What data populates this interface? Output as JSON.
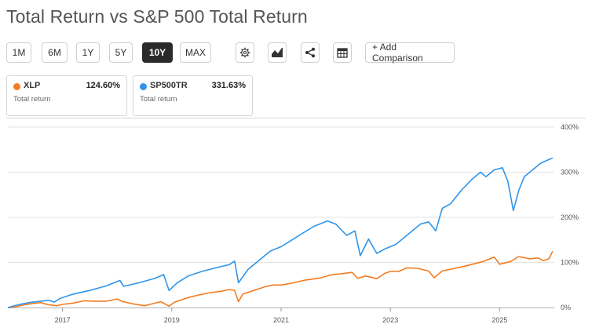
{
  "header": {
    "title": "Total Return vs S&P 500 Total Return"
  },
  "toolbar": {
    "ranges": [
      "1M",
      "6M",
      "1Y",
      "5Y",
      "10Y",
      "MAX"
    ],
    "active_range": "10Y",
    "icons": [
      "gear-icon",
      "chart-type-icon",
      "share-icon",
      "table-icon"
    ],
    "add_label": "+ Add Comparison"
  },
  "legend": [
    {
      "ticker": "XLP",
      "value": "124.60%",
      "sub": "Total return",
      "color": "#f47c20"
    },
    {
      "ticker": "SP500TR",
      "value": "331.63%",
      "sub": "Total return",
      "color": "#2f95ea"
    }
  ],
  "chart_data": {
    "type": "line",
    "x_ticks": [
      "2017",
      "2019",
      "2021",
      "2023",
      "2025"
    ],
    "y_ticks": [
      "400%",
      "300%",
      "200%",
      "100%",
      "0%"
    ],
    "ylim": [
      0,
      400
    ],
    "xlim": [
      2016.0,
      2026.0
    ],
    "grid": true,
    "series": [
      {
        "name": "XLP",
        "color": "#f47c20",
        "points": [
          [
            2016.0,
            0
          ],
          [
            2016.15,
            2
          ],
          [
            2016.3,
            6
          ],
          [
            2016.45,
            9
          ],
          [
            2016.6,
            11
          ],
          [
            2016.75,
            6
          ],
          [
            2016.9,
            4
          ],
          [
            2017.0,
            7
          ],
          [
            2017.2,
            10
          ],
          [
            2017.4,
            15
          ],
          [
            2017.6,
            14
          ],
          [
            2017.8,
            14
          ],
          [
            2018.0,
            19
          ],
          [
            2018.1,
            13
          ],
          [
            2018.3,
            8
          ],
          [
            2018.5,
            4
          ],
          [
            2018.6,
            7
          ],
          [
            2018.8,
            13
          ],
          [
            2018.95,
            3
          ],
          [
            2019.05,
            12
          ],
          [
            2019.3,
            22
          ],
          [
            2019.5,
            28
          ],
          [
            2019.7,
            33
          ],
          [
            2019.9,
            36
          ],
          [
            2020.05,
            40
          ],
          [
            2020.15,
            38
          ],
          [
            2020.22,
            13
          ],
          [
            2020.3,
            30
          ],
          [
            2020.5,
            38
          ],
          [
            2020.7,
            46
          ],
          [
            2020.85,
            50
          ],
          [
            2021.0,
            50
          ],
          [
            2021.2,
            54
          ],
          [
            2021.45,
            61
          ],
          [
            2021.7,
            65
          ],
          [
            2021.9,
            72
          ],
          [
            2022.1,
            75
          ],
          [
            2022.3,
            78
          ],
          [
            2022.4,
            65
          ],
          [
            2022.55,
            70
          ],
          [
            2022.75,
            64
          ],
          [
            2022.9,
            76
          ],
          [
            2023.0,
            80
          ],
          [
            2023.15,
            80
          ],
          [
            2023.3,
            88
          ],
          [
            2023.5,
            87
          ],
          [
            2023.7,
            81
          ],
          [
            2023.8,
            66
          ],
          [
            2023.95,
            81
          ],
          [
            2024.1,
            85
          ],
          [
            2024.3,
            90
          ],
          [
            2024.5,
            96
          ],
          [
            2024.7,
            102
          ],
          [
            2024.9,
            112
          ],
          [
            2025.0,
            96
          ],
          [
            2025.2,
            102
          ],
          [
            2025.35,
            113
          ],
          [
            2025.55,
            108
          ],
          [
            2025.7,
            110
          ],
          [
            2025.8,
            104
          ],
          [
            2025.9,
            108
          ],
          [
            2025.97,
            124.6
          ]
        ]
      },
      {
        "name": "SP500TR",
        "color": "#2f95ea",
        "points": [
          [
            2016.0,
            0
          ],
          [
            2016.15,
            5
          ],
          [
            2016.3,
            9
          ],
          [
            2016.45,
            12
          ],
          [
            2016.6,
            14
          ],
          [
            2016.75,
            16
          ],
          [
            2016.85,
            12
          ],
          [
            2016.95,
            20
          ],
          [
            2017.2,
            30
          ],
          [
            2017.5,
            38
          ],
          [
            2017.8,
            48
          ],
          [
            2018.05,
            60
          ],
          [
            2018.12,
            47
          ],
          [
            2018.4,
            55
          ],
          [
            2018.7,
            65
          ],
          [
            2018.85,
            73
          ],
          [
            2018.95,
            38
          ],
          [
            2019.1,
            55
          ],
          [
            2019.3,
            70
          ],
          [
            2019.55,
            80
          ],
          [
            2019.8,
            88
          ],
          [
            2020.05,
            95
          ],
          [
            2020.15,
            103
          ],
          [
            2020.22,
            55
          ],
          [
            2020.4,
            85
          ],
          [
            2020.6,
            105
          ],
          [
            2020.8,
            125
          ],
          [
            2021.0,
            135
          ],
          [
            2021.2,
            150
          ],
          [
            2021.4,
            165
          ],
          [
            2021.6,
            180
          ],
          [
            2021.85,
            192
          ],
          [
            2022.0,
            185
          ],
          [
            2022.2,
            160
          ],
          [
            2022.35,
            170
          ],
          [
            2022.45,
            115
          ],
          [
            2022.6,
            152
          ],
          [
            2022.75,
            120
          ],
          [
            2022.9,
            130
          ],
          [
            2023.1,
            140
          ],
          [
            2023.35,
            165
          ],
          [
            2023.55,
            185
          ],
          [
            2023.7,
            190
          ],
          [
            2023.83,
            170
          ],
          [
            2023.95,
            220
          ],
          [
            2024.1,
            230
          ],
          [
            2024.3,
            260
          ],
          [
            2024.5,
            285
          ],
          [
            2024.65,
            300
          ],
          [
            2024.75,
            290
          ],
          [
            2024.9,
            305
          ],
          [
            2025.05,
            310
          ],
          [
            2025.15,
            280
          ],
          [
            2025.25,
            215
          ],
          [
            2025.35,
            260
          ],
          [
            2025.45,
            290
          ],
          [
            2025.6,
            305
          ],
          [
            2025.75,
            320
          ],
          [
            2025.9,
            328
          ],
          [
            2025.97,
            331.63
          ]
        ]
      }
    ]
  }
}
